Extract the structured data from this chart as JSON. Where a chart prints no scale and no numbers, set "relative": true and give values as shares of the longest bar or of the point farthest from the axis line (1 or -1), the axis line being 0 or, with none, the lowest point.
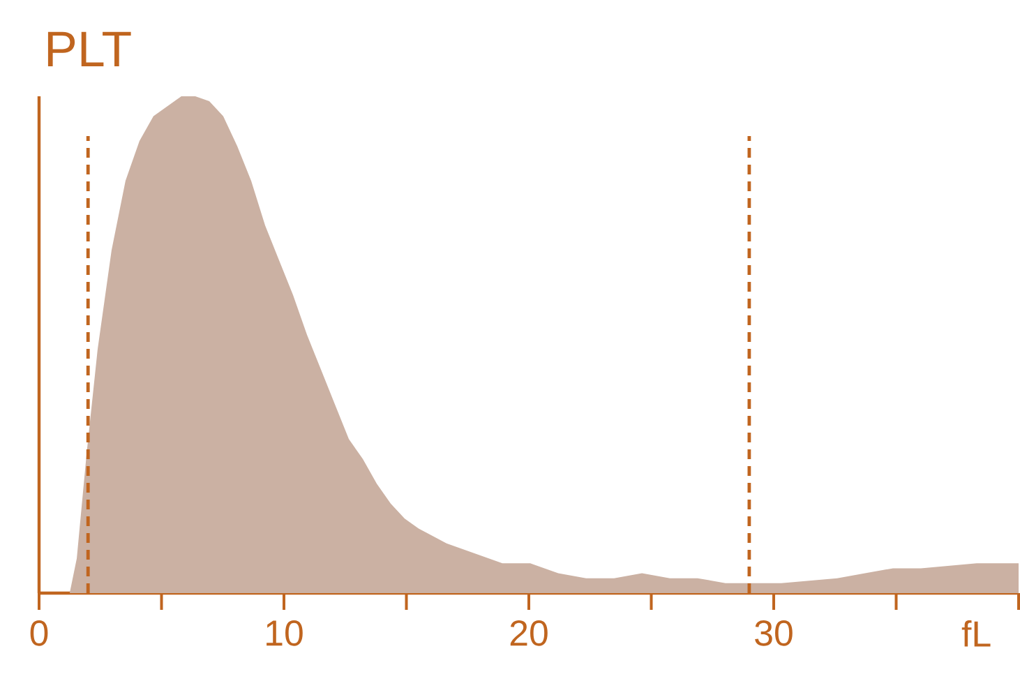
{
  "chart_data": {
    "type": "area",
    "title": "PLT",
    "xlabel": "fL",
    "relative": true,
    "xlim": [
      0,
      40
    ],
    "xticks": [
      0,
      {
        "value": 5,
        "label": null
      },
      10,
      {
        "value": 15,
        "label": null
      },
      20,
      {
        "value": 25,
        "label": null
      },
      30,
      {
        "value": 35,
        "label": null
      },
      {
        "value": 40,
        "label": null
      }
    ],
    "series": [
      {
        "color": "#cbb1a3",
        "x": [
          1.25,
          1.54,
          1.94,
          2.39,
          2.96,
          3.53,
          4.1,
          4.67,
          5.24,
          5.81,
          6.38,
          6.95,
          7.52,
          8.09,
          8.66,
          9.23,
          9.8,
          10.37,
          10.94,
          11.51,
          12.08,
          12.65,
          13.22,
          13.79,
          14.36,
          14.93,
          15.5,
          16.64,
          17.78,
          18.92,
          20.06,
          21.2,
          22.34,
          23.48,
          24.62,
          25.76,
          26.89,
          28.03,
          29.17,
          30.31,
          32.59,
          33.73,
          34.87,
          36.01,
          38.29,
          40
        ],
        "values": [
          0,
          0.07,
          0.28,
          0.49,
          0.69,
          0.83,
          0.91,
          0.96,
          0.98,
          1.0,
          1.0,
          0.99,
          0.96,
          0.9,
          0.83,
          0.74,
          0.67,
          0.6,
          0.52,
          0.45,
          0.38,
          0.31,
          0.27,
          0.22,
          0.18,
          0.15,
          0.13,
          0.1,
          0.08,
          0.06,
          0.06,
          0.04,
          0.03,
          0.03,
          0.04,
          0.03,
          0.03,
          0.02,
          0.02,
          0.02,
          0.03,
          0.04,
          0.05,
          0.05,
          0.06,
          0.06
        ]
      }
    ],
    "ref_lines": [
      {
        "axis": "x",
        "value": 2,
        "color": "#c0651f",
        "line_style": "dashed"
      },
      {
        "axis": "x",
        "value": 29,
        "color": "#c0651f",
        "line_style": "dashed"
      }
    ]
  }
}
